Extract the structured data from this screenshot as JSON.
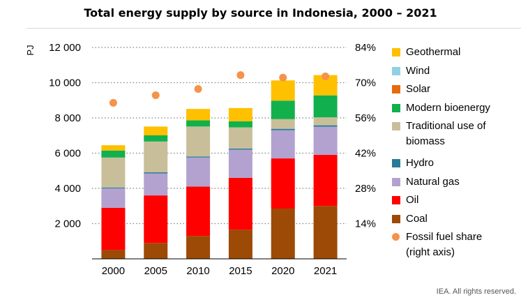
{
  "chart_data": {
    "type": "bar",
    "stacked": true,
    "title": "Total energy supply by source in Indonesia, 2000 – 2021",
    "ylabel": "PJ",
    "y2label": "",
    "categories": [
      "2000",
      "2005",
      "2010",
      "2015",
      "2020",
      "2021"
    ],
    "ylim": [
      0,
      12000
    ],
    "y2lim": [
      0,
      84
    ],
    "yticks": [
      2000,
      4000,
      6000,
      8000,
      10000,
      12000
    ],
    "ytick_labels": [
      "2 000",
      "4 000",
      "6 000",
      "8 000",
      "10 000",
      "12 000"
    ],
    "y2ticks": [
      14,
      28,
      42,
      56,
      70,
      84
    ],
    "y2tick_labels": [
      "14%",
      "28%",
      "42%",
      "56%",
      "70%",
      "84%"
    ],
    "grid": "horizontal dotted",
    "legend_position": "right",
    "series": [
      {
        "name": "Coal",
        "color": "#9c4a05",
        "values": [
          500,
          900,
          1300,
          1650,
          2850,
          3000
        ]
      },
      {
        "name": "Oil",
        "color": "#ff0000",
        "values": [
          2400,
          2700,
          2800,
          2950,
          2850,
          2900
        ]
      },
      {
        "name": "Natural gas",
        "color": "#b3a2cf",
        "values": [
          1100,
          1250,
          1650,
          1600,
          1600,
          1600
        ]
      },
      {
        "name": "Hydro",
        "color": "#2a7b99",
        "values": [
          50,
          60,
          60,
          60,
          80,
          80
        ]
      },
      {
        "name": "Traditional use of\nbiomass",
        "color": "#c8bf9a",
        "values": [
          1700,
          1750,
          1700,
          1200,
          550,
          450
        ]
      },
      {
        "name": "Modern bioenergy",
        "color": "#12b04c",
        "values": [
          400,
          350,
          350,
          350,
          1050,
          1250
        ]
      },
      {
        "name": "Solar",
        "color": "#e66b0c",
        "values": [
          0,
          0,
          0,
          0,
          0,
          0
        ]
      },
      {
        "name": "Wind",
        "color": "#8fd1e3",
        "values": [
          0,
          0,
          0,
          0,
          0,
          0
        ]
      },
      {
        "name": "Geothermal",
        "color": "#ffc000",
        "values": [
          300,
          500,
          650,
          750,
          1150,
          1150
        ]
      }
    ],
    "line_series": {
      "name": "Fossil fuel share\n(right axis)",
      "color": "#f5934a",
      "axis": "right",
      "values": [
        62,
        65,
        67.5,
        73,
        72,
        72.5
      ]
    }
  },
  "legend_order": [
    "Geothermal",
    "Wind",
    "Solar",
    "Modern bioenergy",
    "Traditional use of\nbiomass",
    "Hydro",
    "Natural gas",
    "Oil",
    "Coal",
    "Fossil fuel share\n(right axis)"
  ],
  "copyright": "IEA. All rights reserved."
}
